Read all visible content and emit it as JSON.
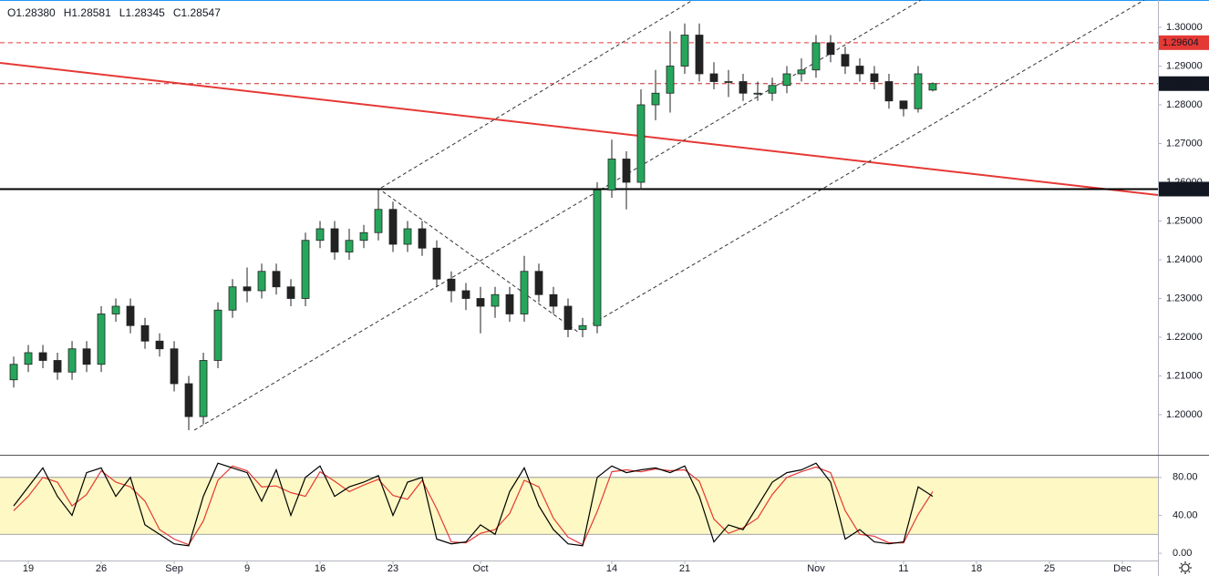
{
  "chart_data": {
    "type": "candlestick",
    "legend": [
      "O1.28380",
      "H1.28581",
      "L1.28345",
      "C1.28547"
    ],
    "x": [
      -1,
      0,
      1,
      2,
      3,
      4,
      5,
      6,
      7,
      8,
      9,
      10,
      11,
      12,
      13,
      14,
      15,
      16,
      17,
      18,
      19,
      20,
      21,
      22,
      23,
      24,
      25,
      26,
      27,
      28,
      29,
      30,
      31,
      32,
      33,
      34,
      35,
      36,
      37,
      38,
      39,
      40,
      41,
      42,
      43,
      44,
      45,
      46,
      47,
      48,
      49,
      50,
      51,
      52,
      53,
      54,
      55,
      56,
      57,
      58,
      59,
      60,
      61,
      62
    ],
    "open": [
      1.209,
      1.213,
      1.216,
      1.214,
      1.211,
      1.217,
      1.213,
      1.226,
      1.228,
      1.223,
      1.219,
      1.217,
      1.208,
      1.1995,
      1.214,
      1.227,
      1.233,
      1.232,
      1.237,
      1.233,
      1.23,
      1.245,
      1.248,
      1.242,
      1.245,
      1.247,
      1.253,
      1.244,
      1.248,
      1.243,
      1.235,
      1.232,
      1.23,
      1.228,
      1.231,
      1.226,
      1.237,
      1.231,
      1.228,
      1.222,
      1.223,
      1.258,
      1.266,
      1.26,
      1.28,
      1.283,
      1.29,
      1.298,
      1.288,
      1.286,
      1.286,
      1.283,
      1.283,
      1.285,
      1.288,
      1.289,
      1.296,
      1.293,
      1.29,
      1.288,
      1.286,
      1.281,
      1.279,
      1.2838
    ],
    "high": [
      1.215,
      1.218,
      1.218,
      1.216,
      1.219,
      1.219,
      1.228,
      1.23,
      1.23,
      1.225,
      1.221,
      1.219,
      1.21,
      1.216,
      1.229,
      1.235,
      1.238,
      1.239,
      1.239,
      1.235,
      1.247,
      1.25,
      1.25,
      1.248,
      1.249,
      1.258,
      1.255,
      1.25,
      1.25,
      1.245,
      1.237,
      1.234,
      1.233,
      1.233,
      1.233,
      1.241,
      1.239,
      1.233,
      1.23,
      1.225,
      1.26,
      1.271,
      1.268,
      1.284,
      1.289,
      1.299,
      1.301,
      1.301,
      1.291,
      1.289,
      1.288,
      1.286,
      1.287,
      1.29,
      1.292,
      1.298,
      1.298,
      1.295,
      1.292,
      1.29,
      1.288,
      1.281,
      1.29,
      1.28581
    ],
    "low": [
      1.207,
      1.211,
      1.212,
      1.209,
      1.209,
      1.211,
      1.211,
      1.224,
      1.221,
      1.217,
      1.215,
      1.206,
      1.196,
      1.1975,
      1.212,
      1.225,
      1.229,
      1.23,
      1.231,
      1.228,
      1.228,
      1.243,
      1.24,
      1.24,
      1.243,
      1.245,
      1.242,
      1.242,
      1.241,
      1.233,
      1.229,
      1.227,
      1.221,
      1.225,
      1.224,
      1.224,
      1.229,
      1.226,
      1.22,
      1.22,
      1.221,
      1.256,
      1.253,
      1.258,
      1.276,
      1.278,
      1.288,
      1.286,
      1.284,
      1.282,
      1.281,
      1.281,
      1.281,
      1.283,
      1.286,
      1.287,
      1.291,
      1.288,
      1.286,
      1.284,
      1.279,
      1.277,
      1.278,
      1.28345
    ],
    "close": [
      1.213,
      1.216,
      1.214,
      1.211,
      1.217,
      1.213,
      1.226,
      1.228,
      1.223,
      1.219,
      1.217,
      1.208,
      1.1995,
      1.214,
      1.227,
      1.233,
      1.232,
      1.237,
      1.233,
      1.23,
      1.245,
      1.248,
      1.242,
      1.245,
      1.247,
      1.253,
      1.244,
      1.248,
      1.243,
      1.235,
      1.232,
      1.23,
      1.228,
      1.231,
      1.226,
      1.237,
      1.231,
      1.228,
      1.222,
      1.223,
      1.258,
      1.266,
      1.26,
      1.28,
      1.283,
      1.29,
      1.298,
      1.288,
      1.286,
      1.286,
      1.283,
      1.283,
      1.285,
      1.288,
      1.289,
      1.296,
      1.293,
      1.29,
      1.288,
      1.286,
      1.281,
      1.279,
      1.288,
      1.28547
    ],
    "up_color": "#26a65b",
    "down_color": "#222222",
    "xlim": [
      -1.94,
      77.44
    ],
    "xticks": [
      {
        "value": 0,
        "label": "19"
      },
      {
        "value": 5,
        "label": "26"
      },
      {
        "value": 10,
        "label": "Sep"
      },
      {
        "value": 15,
        "label": "9"
      },
      {
        "value": 20,
        "label": "16"
      },
      {
        "value": 25,
        "label": "23"
      },
      {
        "value": 31,
        "label": "Oct"
      },
      {
        "value": 40,
        "label": "14"
      },
      {
        "value": 45,
        "label": "21"
      },
      {
        "value": 54,
        "label": "Nov"
      },
      {
        "value": 60,
        "label": "11"
      },
      {
        "value": 65,
        "label": "18"
      },
      {
        "value": 70,
        "label": "25"
      },
      {
        "value": 75,
        "label": "Dec"
      }
    ],
    "ylim": [
      1.18988,
      1.30706
    ],
    "yticks": [
      {
        "value": 1.2,
        "label": "1.20000"
      },
      {
        "value": 1.21,
        "label": "1.21000"
      },
      {
        "value": 1.22,
        "label": "1.22000"
      },
      {
        "value": 1.23,
        "label": "1.23000"
      },
      {
        "value": 1.24,
        "label": "1.24000"
      },
      {
        "value": 1.25,
        "label": "1.25000"
      },
      {
        "value": 1.26,
        "label": "1.26000"
      },
      {
        "value": 1.27,
        "label": "1.27000"
      },
      {
        "value": 1.28,
        "label": "1.28000"
      },
      {
        "value": 1.29,
        "label": "1.29000"
      },
      {
        "value": 1.3,
        "label": "1.30000"
      }
    ],
    "levels": [
      {
        "value": 1.29604,
        "color": "#e53935",
        "label_color": "#e53935",
        "dashed": true
      },
      {
        "value": 1.28547,
        "color": "#c62828",
        "label_color": "#131722",
        "dashed": true
      },
      {
        "value": 1.25824,
        "color": "#000000",
        "label_color": "#131722",
        "dashed": false
      }
    ],
    "trendlines": [
      {
        "points": [
          [
            -1.94,
            1.29082
          ],
          [
            77.44,
            1.25671
          ]
        ],
        "color": "#e53935",
        "dashed": false
      },
      {
        "points": [
          [
            11.375,
            1.196
          ],
          [
            61.19,
            1.30706
          ]
        ],
        "color": "#333333",
        "dashed": true
      },
      {
        "points": [
          [
            38.7,
            1.22353
          ],
          [
            76.5,
            1.30706
          ]
        ],
        "color": "#333333",
        "dashed": true
      },
      {
        "points": [
          [
            24.19,
            1.25859
          ],
          [
            45.56,
            1.30706
          ]
        ],
        "color": "#333333",
        "dashed": true
      },
      {
        "points": [
          [
            24.3,
            1.2576
          ],
          [
            37.75,
            1.22118
          ]
        ],
        "color": "#333333",
        "dashed": true
      }
    ],
    "oscillator": {
      "ylim": [
        -7.6,
        102.9
      ],
      "yticks": [
        {
          "value": 0,
          "label": "0.00"
        },
        {
          "value": 40,
          "label": "40.00"
        },
        {
          "value": 80,
          "label": "80.00"
        }
      ],
      "band": [
        20,
        80
      ],
      "band_color": "#fdf8c4",
      "k_color": "#000000",
      "d_color": "#e53935",
      "k": [
        50,
        70,
        90,
        60,
        40,
        85,
        90,
        60,
        80,
        30,
        20,
        10,
        8,
        60,
        95,
        90,
        85,
        55,
        88,
        40,
        80,
        92,
        60,
        70,
        75,
        82,
        40,
        75,
        80,
        15,
        10,
        12,
        30,
        20,
        65,
        90,
        50,
        25,
        10,
        8,
        80,
        92,
        85,
        88,
        90,
        85,
        92,
        60,
        12,
        30,
        25,
        50,
        75,
        85,
        88,
        95,
        75,
        15,
        25,
        12,
        10,
        12,
        70,
        60
      ],
      "d": [
        45,
        60,
        80,
        75,
        50,
        62,
        87,
        75,
        70,
        55,
        25,
        15,
        9,
        34,
        77,
        92,
        87,
        70,
        71,
        64,
        60,
        86,
        76,
        65,
        72,
        78,
        61,
        57,
        77,
        47,
        12,
        11,
        21,
        25,
        42,
        77,
        70,
        37,
        17,
        9,
        44,
        86,
        88,
        86,
        89,
        87,
        88,
        76,
        36,
        21,
        27,
        37,
        62,
        80,
        86,
        91,
        85,
        45,
        20,
        18,
        11,
        11,
        41,
        65
      ]
    }
  }
}
